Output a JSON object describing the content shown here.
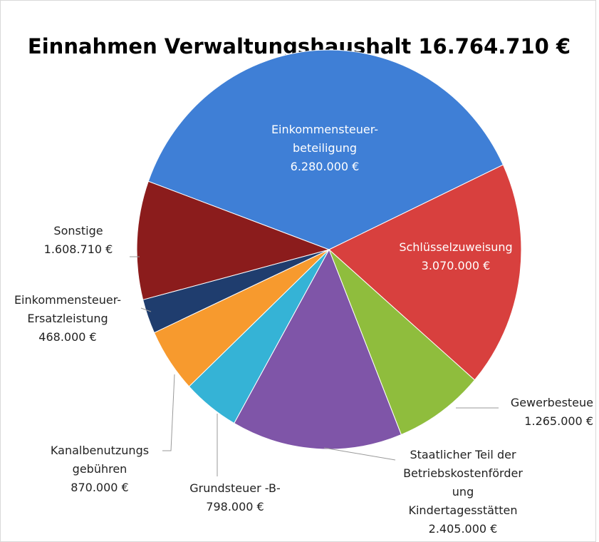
{
  "chart_data": {
    "type": "pie",
    "title": "Einnahmen Verwaltungshaushalt 16.764.710 €",
    "categories": [
      "Einkommensteuer-\nbeteiligung",
      "Schlüsselzuweisung",
      "Gewerbesteue",
      "Staatlicher Teil der\nBetriebskostenförder\nung\nKindertagesstätten",
      "Grundsteuer -B-",
      "Kanalbenutzungs\ngebühren",
      "Einkommensteuer-\nErsatzleistung",
      "Sonstige"
    ],
    "values": [
      6280000,
      3070000,
      1265000,
      2405000,
      798000,
      870000,
      468000,
      1608710
    ],
    "value_labels": [
      "6.280.000 €",
      "3.070.000 €",
      "1.265.000 €",
      "2.405.000 €",
      "798.000 €",
      "870.000 €",
      "468.000 €",
      "1.608.710 €"
    ],
    "colors": [
      "#3f7fd6",
      "#d8403e",
      "#8fbd3d",
      "#7f55a8",
      "#35b3d6",
      "#f79a2e",
      "#1f3d6e",
      "#8b1c1c"
    ]
  }
}
